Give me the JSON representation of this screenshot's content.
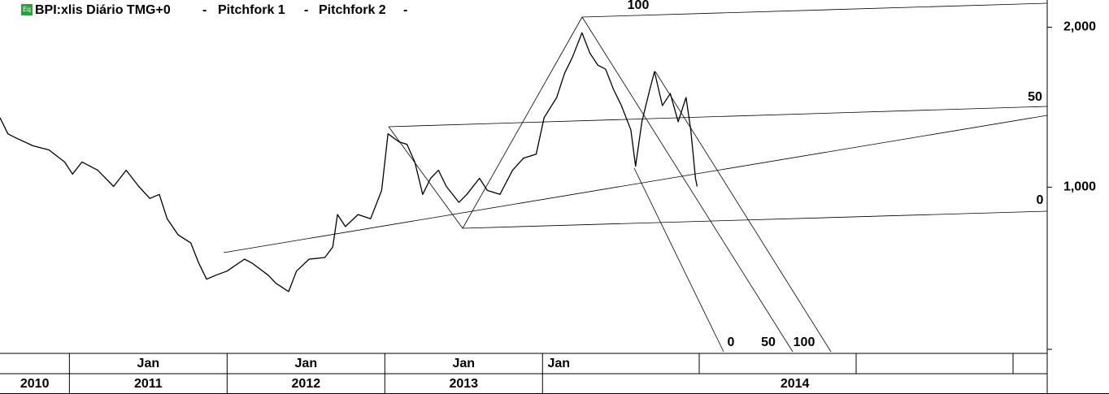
{
  "chart_data": {
    "type": "line",
    "header": {
      "badge": "Eq",
      "title": "BPI:xlis Diário TMG+0",
      "studies": [
        "Pitchfork 1",
        "Pitchfork 2"
      ]
    },
    "x": [
      2010.56,
      2010.61,
      2010.66,
      2010.77,
      2010.87,
      2010.97,
      2011.02,
      2011.08,
      2011.18,
      2011.28,
      2011.36,
      2011.44,
      2011.51,
      2011.57,
      2011.62,
      2011.69,
      2011.77,
      2011.82,
      2011.87,
      2011.93,
      2012.0,
      2012.11,
      2012.16,
      2012.26,
      2012.31,
      2012.39,
      2012.44,
      2012.52,
      2012.62,
      2012.67,
      2012.7,
      2012.75,
      2012.83,
      2012.91,
      2012.98,
      2013.02,
      2013.09,
      2013.14,
      2013.19,
      2013.24,
      2013.29,
      2013.34,
      2013.39,
      2013.47,
      2013.52,
      2013.6,
      2013.65,
      2013.73,
      2013.81,
      2013.88,
      2013.96,
      2014.01,
      2014.09,
      2014.14,
      2014.19,
      2014.25,
      2014.3,
      2014.35,
      2014.4,
      2014.45,
      2014.5,
      2014.56,
      2014.59,
      2014.63,
      2014.68,
      2014.71,
      2014.76,
      2014.81,
      2014.86,
      2014.91,
      2014.94,
      2014.97,
      2014.98
    ],
    "series": [
      {
        "name": "BPI:xlis",
        "color": "#000000",
        "values": [
          1351,
          1260,
          1238,
          1196,
          1175,
          1115,
          1058,
          1115,
          1076,
          1003,
          1076,
          1003,
          952,
          969,
          872,
          813,
          785,
          720,
          671,
          683,
          695,
          732,
          719,
          683,
          659,
          636,
          695,
          732,
          737,
          772,
          888,
          843,
          888,
          872,
          986,
          1260,
          1217,
          1204,
          1115,
          969,
          1039,
          1076,
          1003,
          936,
          969,
          1039,
          986,
          969,
          1076,
          1134,
          1154,
          1351,
          1475,
          1638,
          1757,
          1952,
          1788,
          1697,
          1667,
          1527,
          1424,
          1282,
          1095,
          1328,
          1527,
          1650,
          1424,
          1500,
          1328,
          1475,
          1282,
          1039,
          1003
        ]
      }
    ],
    "xlim": [
      2010.56,
      2017.2
    ],
    "xticks": [
      {
        "value": 2011,
        "label": "Jan"
      },
      {
        "value": 2012,
        "label": "Jan"
      },
      {
        "value": 2013,
        "label": "Jan"
      },
      {
        "value": 2014,
        "label": "Jan"
      }
    ],
    "year_labels": [
      "2010",
      "2011",
      "2012",
      "2013",
      "2014"
    ],
    "ylim": [
      490,
      2250
    ],
    "yticks": [
      {
        "value": 1000,
        "label": "1,000"
      },
      {
        "value": 2000,
        "label": "2,000"
      }
    ],
    "log_scale": true,
    "grid": false,
    "pitchfork_labels": {
      "fork1": [
        "100",
        "50",
        "0"
      ],
      "fork2": [
        "0",
        "50",
        "100"
      ]
    }
  }
}
